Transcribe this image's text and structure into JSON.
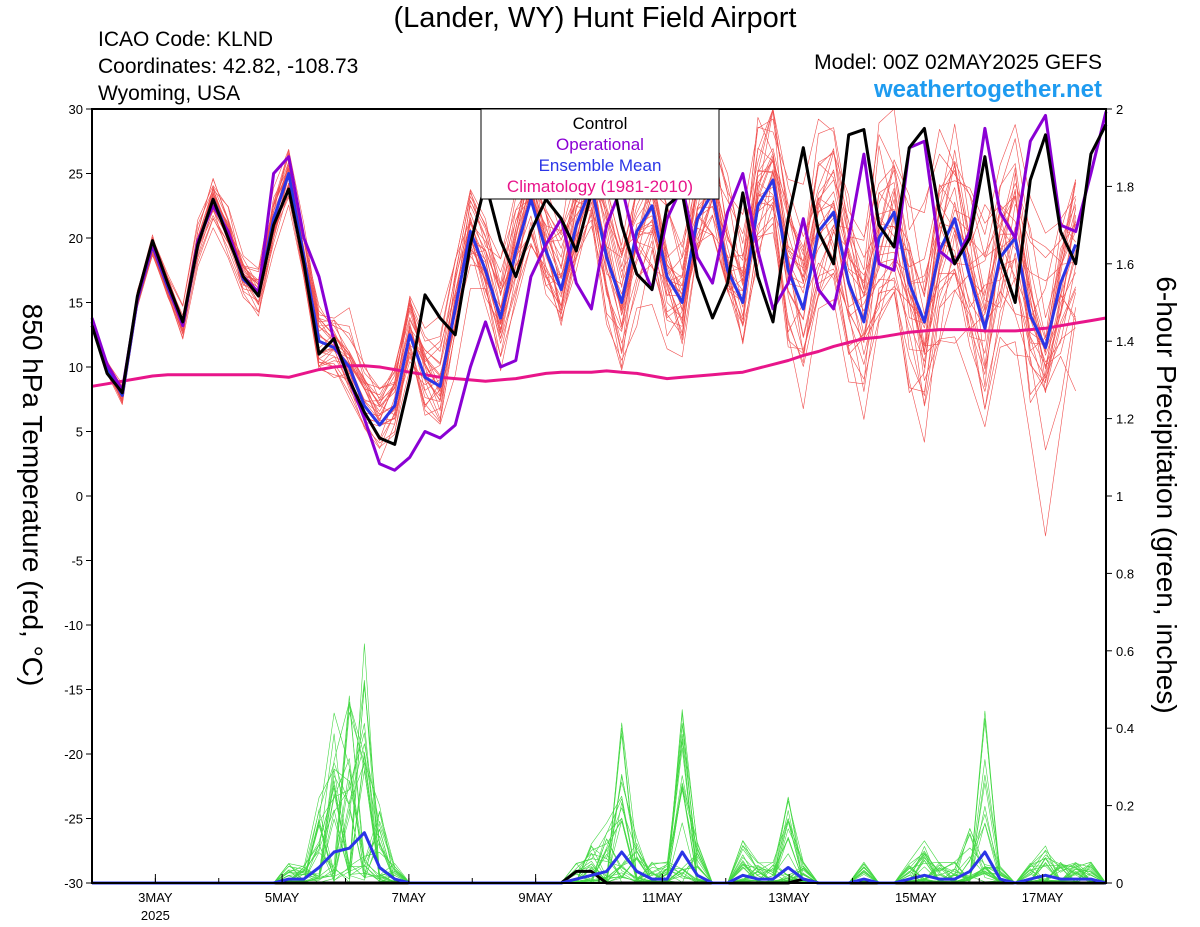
{
  "header": {
    "title": "(Lander, WY) Hunt Field Airport",
    "icao": "ICAO Code: KLND",
    "coords": "Coordinates: 42.82, -108.73",
    "region": "Wyoming, USA",
    "model": "Model: 00Z 02MAY2025 GEFS",
    "site": "weathertogether.net"
  },
  "chart_data": {
    "type": "line",
    "title": "(Lander, WY) Hunt Field Airport",
    "ylabel": "850 hPa Temperature (red, °C)",
    "y2label": "6-hour Precipitation (green, inches)",
    "ylim": [
      -30,
      30
    ],
    "y2lim": [
      0,
      2
    ],
    "yticks": [
      30,
      25,
      20,
      15,
      10,
      5,
      0,
      -5,
      -10,
      -15,
      -20,
      -25,
      -30
    ],
    "y2ticks": [
      2,
      1.8,
      1.6,
      1.4,
      1.2,
      1,
      0.8,
      0.6,
      0.4,
      0.2,
      0
    ],
    "x_start": "2025-05-02T00Z",
    "x_end": "2025-05-18T00Z",
    "x_step": "6 hours",
    "xticks": [
      {
        "day": 3,
        "label": "3MAY",
        "sublabel": "2025"
      },
      {
        "day": 5,
        "label": "5MAY"
      },
      {
        "day": 7,
        "label": "7MAY"
      },
      {
        "day": 9,
        "label": "9MAY"
      },
      {
        "day": 11,
        "label": "11MAY"
      },
      {
        "day": 13,
        "label": "13MAY"
      },
      {
        "day": 15,
        "label": "15MAY"
      },
      {
        "day": 17,
        "label": "17MAY"
      }
    ],
    "legend": [
      {
        "label": "Control",
        "color": "#000000"
      },
      {
        "label": "Operational",
        "color": "#8a00d4"
      },
      {
        "label": "Ensemble Mean",
        "color": "#2b35e6"
      },
      {
        "label": "Climatology (1981-2010)",
        "color": "#e8158a"
      }
    ],
    "legend_position": "top-center",
    "colors": {
      "members_temp": "#f05050",
      "members_precip": "#44d844"
    },
    "series": [
      {
        "name": "Control",
        "axis": "temperature",
        "color": "#000000",
        "values": [
          13.2,
          9.5,
          8,
          15.5,
          19.8,
          16.5,
          13.5,
          19.5,
          23,
          20,
          17,
          15.5,
          21,
          23.8,
          18,
          11,
          12.2,
          9,
          6.5,
          4.5,
          4,
          9,
          15.6,
          13.8,
          12.5,
          19.5,
          24.3,
          19.8,
          17,
          20.5,
          23,
          21.5,
          19,
          23.5,
          26.8,
          21,
          17.2,
          16,
          22.5,
          23.5,
          17,
          13.8,
          16.5,
          23.5,
          17,
          13.5,
          21.5,
          27,
          20.5,
          18,
          28,
          28.4,
          21,
          19.3,
          27,
          28.5,
          22,
          18,
          20,
          26.3,
          18.5,
          15,
          24.5,
          28,
          20.5,
          18,
          26.5,
          28.8
        ]
      },
      {
        "name": "Operational",
        "axis": "temperature",
        "color": "#8a00d4",
        "values": [
          13.8,
          10.2,
          8.2,
          15.3,
          19.5,
          16.4,
          13.2,
          19.8,
          22.5,
          20.5,
          17,
          15.8,
          25,
          26.3,
          20,
          17,
          12,
          9,
          6,
          2.5,
          2,
          3,
          5,
          4.5,
          5.5,
          10,
          13.5,
          10,
          10.5,
          17,
          19.5,
          21.5,
          16.5,
          14.5,
          21,
          24,
          19,
          16,
          21.5,
          24,
          18.5,
          16.5,
          22,
          25,
          19,
          14.5,
          16.5,
          21.5,
          16,
          14.5,
          20,
          26.5,
          18,
          17.5,
          27,
          27.5,
          19,
          18,
          20.5,
          28.5,
          22,
          20,
          27.5,
          29.5,
          21,
          20.5,
          25,
          29.8
        ]
      },
      {
        "name": "Ensemble Mean",
        "axis": "temperature",
        "color": "#2b35e6",
        "values": [
          13.5,
          10,
          7.8,
          15.2,
          19.4,
          16.2,
          13.3,
          19.5,
          23,
          20.3,
          16.8,
          15.7,
          21.5,
          25,
          18.5,
          12,
          11.5,
          10,
          7,
          5.5,
          7,
          12.5,
          9.2,
          8.5,
          14.5,
          20.5,
          17.5,
          13.8,
          19,
          23,
          19,
          16,
          21,
          24,
          18.5,
          15,
          20.5,
          22.5,
          17,
          15,
          21.5,
          23.5,
          17.5,
          15,
          22.5,
          24.5,
          17.5,
          14.5,
          20.5,
          22,
          16.5,
          13.5,
          20,
          22,
          16.5,
          13.5,
          19,
          21.5,
          17,
          13,
          18.5,
          20,
          14,
          11.5,
          16.5,
          19.5
        ]
      },
      {
        "name": "Climatology (1981-2010)",
        "axis": "temperature",
        "color": "#e8158a",
        "values": [
          8.5,
          8.7,
          8.9,
          9.1,
          9.3,
          9.4,
          9.4,
          9.4,
          9.4,
          9.4,
          9.4,
          9.4,
          9.3,
          9.2,
          9.5,
          9.8,
          10,
          10.1,
          10.1,
          10,
          9.8,
          9.6,
          9.4,
          9.2,
          9.1,
          9,
          8.9,
          9,
          9.1,
          9.3,
          9.5,
          9.6,
          9.6,
          9.6,
          9.7,
          9.6,
          9.5,
          9.3,
          9.1,
          9.2,
          9.3,
          9.4,
          9.5,
          9.6,
          9.9,
          10.2,
          10.5,
          10.9,
          11.2,
          11.6,
          11.9,
          12.2,
          12.3,
          12.5,
          12.7,
          12.8,
          12.9,
          12.9,
          12.9,
          12.8,
          12.8,
          12.8,
          12.9,
          13,
          13.2,
          13.4,
          13.6,
          13.8
        ]
      },
      {
        "name": "Control",
        "axis": "precipitation",
        "color": "#000000",
        "values": [
          0,
          0,
          0,
          0,
          0,
          0,
          0,
          0,
          0,
          0,
          0,
          0,
          0,
          0,
          0,
          0,
          0,
          0,
          0,
          0,
          0,
          0,
          0,
          0,
          0,
          0,
          0,
          0,
          0,
          0,
          0,
          0,
          0.03,
          0.03,
          0,
          0,
          0,
          0,
          0,
          0,
          0,
          0,
          0,
          0,
          0,
          0,
          0,
          0.01,
          0,
          0,
          0,
          0,
          0,
          0,
          0,
          0,
          0,
          0,
          0,
          0,
          0,
          0,
          0,
          0,
          0,
          0,
          0,
          0
        ]
      },
      {
        "name": "Ensemble Mean",
        "axis": "precipitation",
        "color": "#2b35e6",
        "values": [
          0,
          0,
          0,
          0,
          0,
          0,
          0,
          0,
          0,
          0,
          0,
          0,
          0,
          0.01,
          0.01,
          0.04,
          0.08,
          0.09,
          0.13,
          0.04,
          0.01,
          0,
          0,
          0,
          0,
          0,
          0,
          0,
          0,
          0,
          0,
          0,
          0.01,
          0.02,
          0.03,
          0.08,
          0.03,
          0.01,
          0.01,
          0.08,
          0.02,
          0,
          0,
          0.02,
          0.01,
          0.01,
          0.04,
          0.01,
          0,
          0,
          0,
          0.01,
          0,
          0,
          0.01,
          0.02,
          0.01,
          0.01,
          0.03,
          0.08,
          0.01,
          0,
          0.01,
          0.02,
          0.01,
          0.01,
          0.01,
          0
        ]
      }
    ]
  }
}
